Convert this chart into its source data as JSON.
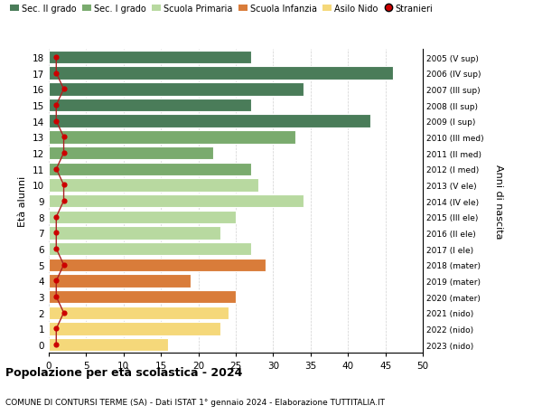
{
  "ages": [
    18,
    17,
    16,
    15,
    14,
    13,
    12,
    11,
    10,
    9,
    8,
    7,
    6,
    5,
    4,
    3,
    2,
    1,
    0
  ],
  "bar_values": [
    27,
    46,
    34,
    27,
    43,
    33,
    22,
    27,
    28,
    34,
    25,
    23,
    27,
    29,
    19,
    25,
    24,
    23,
    16
  ],
  "bar_colors": [
    "#4a7c59",
    "#4a7c59",
    "#4a7c59",
    "#4a7c59",
    "#4a7c59",
    "#7aab6e",
    "#7aab6e",
    "#7aab6e",
    "#b8d9a0",
    "#b8d9a0",
    "#b8d9a0",
    "#b8d9a0",
    "#b8d9a0",
    "#d97c3a",
    "#d97c3a",
    "#d97c3a",
    "#f5d87a",
    "#f5d87a",
    "#f5d87a"
  ],
  "stranieri_values": [
    1,
    1,
    2,
    1,
    1,
    2,
    2,
    1,
    2,
    2,
    1,
    1,
    1,
    2,
    1,
    1,
    2,
    1,
    1
  ],
  "right_labels": [
    "2005 (V sup)",
    "2006 (IV sup)",
    "2007 (III sup)",
    "2008 (II sup)",
    "2009 (I sup)",
    "2010 (III med)",
    "2011 (II med)",
    "2012 (I med)",
    "2013 (V ele)",
    "2014 (IV ele)",
    "2015 (III ele)",
    "2016 (II ele)",
    "2017 (I ele)",
    "2018 (mater)",
    "2019 (mater)",
    "2020 (mater)",
    "2021 (nido)",
    "2022 (nido)",
    "2023 (nido)"
  ],
  "legend_labels": [
    "Sec. II grado",
    "Sec. I grado",
    "Scuola Primaria",
    "Scuola Infanzia",
    "Asilo Nido",
    "Stranieri"
  ],
  "legend_colors": [
    "#4a7c59",
    "#7aab6e",
    "#b8d9a0",
    "#d97c3a",
    "#f5d87a",
    "#cc0000"
  ],
  "ylabel_left": "Età alunni",
  "ylabel_right": "Anni di nascita",
  "title": "Popolazione per età scolastica - 2024",
  "subtitle": "COMUNE DI CONTURSI TERME (SA) - Dati ISTAT 1° gennaio 2024 - Elaborazione TUTTITALIA.IT",
  "xlim": [
    0,
    50
  ],
  "xticks": [
    0,
    5,
    10,
    15,
    20,
    25,
    30,
    35,
    40,
    45,
    50
  ],
  "bg_color": "#ffffff",
  "grid_color": "#cccccc",
  "bar_edge_color": "#ffffff",
  "stranieri_color": "#cc0000",
  "stranieri_line_color": "#aa2222"
}
